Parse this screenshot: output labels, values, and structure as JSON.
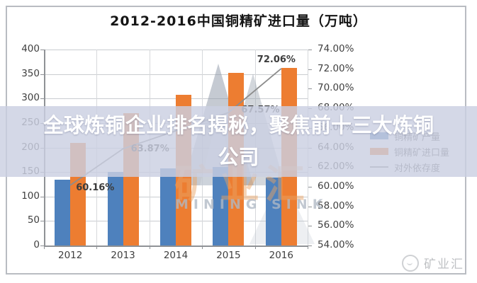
{
  "title": "2012-2016中国铜精矿进口量（万吨）",
  "overlay_banner": {
    "text": "全球炼铜企业排名揭秘，聚焦前十三大炼铜公司"
  },
  "watermark": {
    "cn": "矿业汇",
    "en": "MINING SINK"
  },
  "corner_logo": {
    "text": "矿业汇"
  },
  "chart_data": {
    "type": "bar",
    "title": "2012-2016中国铜精矿进口量（万吨）",
    "categories": [
      "2012",
      "2013",
      "2014",
      "2015",
      "2016"
    ],
    "series": [
      {
        "name": "铜精矿产量",
        "key": "production",
        "type": "bar",
        "axis": "left",
        "color": "#4E81BD",
        "values": [
          135,
          150,
          158,
          160,
          138
        ]
      },
      {
        "name": "铜精矿进口量",
        "key": "imports",
        "type": "bar",
        "axis": "left",
        "color": "#ED7D31",
        "values": [
          210,
          270,
          308,
          352,
          362
        ]
      },
      {
        "name": "对外依存度",
        "key": "dependency",
        "type": "line",
        "axis": "right",
        "color": "#8C8C8C",
        "values": [
          60.16,
          63.87,
          65.7,
          67.57,
          72.06
        ],
        "point_labels": [
          "60.16%",
          "63.87%",
          "",
          "67.57%",
          "72.06%"
        ]
      }
    ],
    "left_axis": {
      "min": 0,
      "max": 400,
      "step": 50,
      "ticks": [
        "400",
        "350",
        "300",
        "250",
        "200",
        "150",
        "100",
        "50",
        "0"
      ]
    },
    "right_axis": {
      "min": 54,
      "max": 74,
      "step": 2,
      "ticks": [
        "74.00%",
        "72.00%",
        "70.00%",
        "68.00%",
        "66.00%",
        "64.00%",
        "62.00%",
        "60.00%",
        "58.00%",
        "56.00%",
        "54.00%"
      ]
    },
    "legend_position": "right",
    "grid": true
  }
}
